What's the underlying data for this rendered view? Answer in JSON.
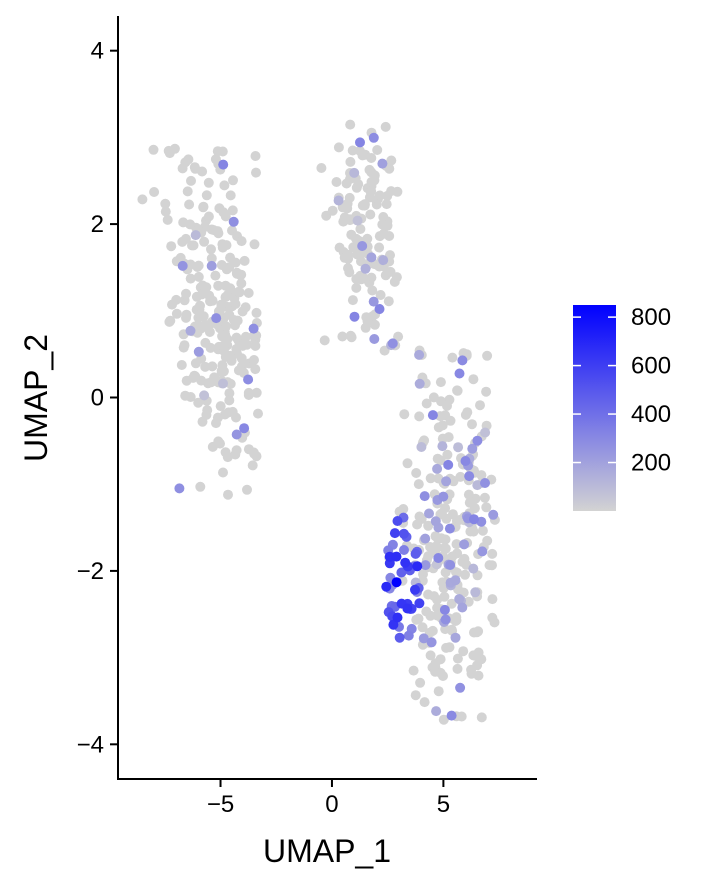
{
  "chart_data": {
    "type": "scatter",
    "title": "",
    "xlabel": "UMAP_1",
    "ylabel": "UMAP_2",
    "xlim": [
      -9.6,
      9.2
    ],
    "ylim": [
      -4.4,
      4.4
    ],
    "xticks": [
      -5,
      0,
      5
    ],
    "yticks": [
      -4,
      -2,
      0,
      2,
      4
    ],
    "grid": false,
    "legend": {
      "type": "colorbar",
      "placement": "right",
      "min": 0,
      "max": 850,
      "ticks": [
        200,
        400,
        600,
        800
      ]
    },
    "colors": {
      "low": "#d3d3d3",
      "high": "#0000ff"
    },
    "clusters": [
      {
        "cx": -5.0,
        "cy": 1.0,
        "sx": 1.35,
        "sy": 0.95,
        "rot": -0.55,
        "n": 260,
        "xmin": -9.0,
        "xmax": -3.3,
        "ymin": -1.15,
        "ymax": 2.95,
        "p_expr": 0.1
      },
      {
        "cx": 1.5,
        "cy": 2.0,
        "sx": 0.85,
        "sy": 0.8,
        "rot": -0.9,
        "n": 140,
        "xmin": -1.1,
        "xmax": 3.0,
        "ymin": 0.5,
        "ymax": 3.15,
        "p_expr": 0.12
      },
      {
        "cx": 5.3,
        "cy": -1.6,
        "sx": 1.05,
        "sy": 1.2,
        "rot": -0.35,
        "n": 280,
        "xmin": 2.3,
        "xmax": 7.5,
        "ymin": -3.75,
        "ymax": 0.65,
        "p_expr": 0.18
      }
    ],
    "hotspot": {
      "x": 3.2,
      "y": -2.1,
      "r": 0.9,
      "n": 45
    },
    "peak": {
      "x": 2.9,
      "y": -2.13,
      "value": 850
    },
    "seed": 42
  }
}
